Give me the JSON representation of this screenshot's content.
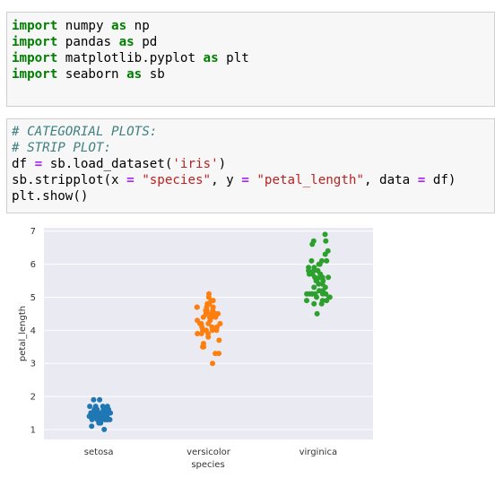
{
  "cells": [
    {
      "lines": [
        [
          {
            "t": "kw",
            "v": "import"
          },
          {
            "t": "p",
            "v": " numpy "
          },
          {
            "t": "kw",
            "v": "as"
          },
          {
            "t": "p",
            "v": " np"
          }
        ],
        [
          {
            "t": "kw",
            "v": "import"
          },
          {
            "t": "p",
            "v": " pandas "
          },
          {
            "t": "kw",
            "v": "as"
          },
          {
            "t": "p",
            "v": " pd"
          }
        ],
        [
          {
            "t": "kw",
            "v": "import"
          },
          {
            "t": "p",
            "v": " matplotlib.pyplot "
          },
          {
            "t": "kw",
            "v": "as"
          },
          {
            "t": "p",
            "v": " plt"
          }
        ],
        [
          {
            "t": "kw",
            "v": "import"
          },
          {
            "t": "p",
            "v": " seaborn "
          },
          {
            "t": "kw",
            "v": "as"
          },
          {
            "t": "p",
            "v": " sb"
          }
        ]
      ]
    },
    {
      "lines": [
        [
          {
            "t": "cm",
            "v": "# CATEGORIAL PLOTS:"
          }
        ],
        [
          {
            "t": "cm",
            "v": "# STRIP PLOT:"
          }
        ],
        [
          {
            "t": "p",
            "v": "df "
          },
          {
            "t": "op",
            "v": "="
          },
          {
            "t": "p",
            "v": " sb.load_dataset("
          },
          {
            "t": "str",
            "v": "'iris'"
          },
          {
            "t": "p",
            "v": ")"
          }
        ],
        [
          {
            "t": "p",
            "v": "sb.stripplot(x "
          },
          {
            "t": "op",
            "v": "="
          },
          {
            "t": "p",
            "v": " "
          },
          {
            "t": "str",
            "v": "\"species\""
          },
          {
            "t": "p",
            "v": ", y "
          },
          {
            "t": "op",
            "v": "="
          },
          {
            "t": "p",
            "v": " "
          },
          {
            "t": "str",
            "v": "\"petal_length\""
          },
          {
            "t": "p",
            "v": ", data "
          },
          {
            "t": "op",
            "v": "="
          },
          {
            "t": "p",
            "v": " df)"
          }
        ],
        [
          {
            "t": "p",
            "v": "plt.show()"
          }
        ]
      ]
    }
  ],
  "chart_data": {
    "type": "scatter",
    "xlabel": "species",
    "ylabel": "petal_length",
    "categories": [
      "setosa",
      "versicolor",
      "virginica"
    ],
    "ylim": [
      0.7,
      7.1
    ],
    "yticks": [
      1,
      2,
      3,
      4,
      5,
      6,
      7
    ],
    "grid": true,
    "background": "#eaeaf2",
    "colors": [
      "#1f77b4",
      "#ff7f0e",
      "#2ca02c"
    ],
    "series": [
      {
        "category": "setosa",
        "values": [
          1.4,
          1.4,
          1.3,
          1.5,
          1.4,
          1.7,
          1.4,
          1.5,
          1.4,
          1.5,
          1.5,
          1.6,
          1.4,
          1.1,
          1.2,
          1.5,
          1.3,
          1.4,
          1.7,
          1.5,
          1.7,
          1.5,
          1.0,
          1.7,
          1.9,
          1.6,
          1.6,
          1.5,
          1.4,
          1.6,
          1.6,
          1.5,
          1.5,
          1.4,
          1.5,
          1.2,
          1.3,
          1.4,
          1.3,
          1.5,
          1.3,
          1.3,
          1.3,
          1.6,
          1.9,
          1.4,
          1.6,
          1.4,
          1.5,
          1.4
        ]
      },
      {
        "category": "versicolor",
        "values": [
          4.7,
          4.5,
          4.9,
          4.0,
          4.6,
          4.5,
          4.7,
          3.3,
          4.6,
          3.9,
          3.5,
          4.2,
          4.0,
          4.7,
          3.6,
          4.4,
          4.5,
          4.1,
          4.5,
          3.9,
          4.8,
          4.0,
          4.9,
          4.7,
          4.3,
          4.4,
          4.8,
          5.0,
          4.5,
          3.5,
          3.8,
          3.7,
          3.9,
          5.1,
          4.5,
          4.5,
          4.7,
          4.4,
          4.1,
          4.0,
          4.4,
          4.6,
          4.0,
          3.3,
          4.2,
          4.2,
          4.2,
          4.3,
          3.0,
          4.1
        ]
      },
      {
        "category": "virginica",
        "values": [
          6.0,
          5.1,
          5.9,
          5.6,
          5.8,
          6.6,
          4.5,
          6.3,
          5.8,
          6.1,
          5.1,
          5.3,
          5.5,
          5.0,
          5.1,
          5.3,
          5.5,
          6.7,
          6.9,
          5.0,
          5.7,
          4.9,
          6.7,
          4.9,
          5.7,
          6.0,
          4.8,
          4.9,
          5.6,
          5.8,
          6.1,
          6.4,
          5.6,
          5.1,
          5.6,
          6.1,
          5.6,
          5.5,
          4.8,
          5.4,
          5.6,
          5.1,
          5.1,
          5.9,
          5.7,
          5.2,
          5.0,
          5.2,
          5.4,
          5.1
        ]
      }
    ]
  }
}
